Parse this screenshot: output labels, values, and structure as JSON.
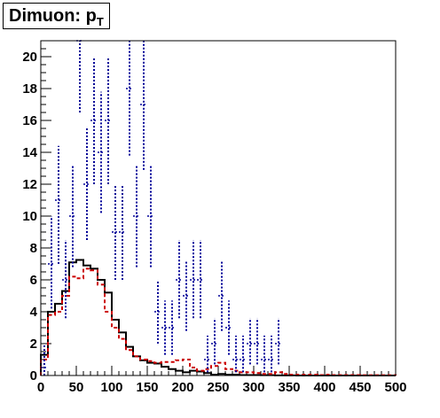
{
  "chart_data": {
    "type": "histogram",
    "title_main": "Dimuon: p",
    "title_sub": "T",
    "xlabel": "",
    "ylabel": "",
    "xlim": [
      0,
      500
    ],
    "ylim": [
      0,
      21
    ],
    "grid": false,
    "legend": "none",
    "bin_width": 10,
    "x_ticks": [
      "0",
      "50",
      "100",
      "150",
      "200",
      "250",
      "300",
      "350",
      "400",
      "450",
      "500"
    ],
    "y_ticks": [
      "0",
      "2",
      "4",
      "6",
      "8",
      "10",
      "12",
      "14",
      "16",
      "18",
      "20"
    ],
    "series": [
      {
        "style": "solid-step",
        "color": "#000000",
        "values": [
          1.3,
          4.0,
          4.5,
          5.3,
          7.1,
          7.25,
          6.9,
          6.7,
          6.0,
          5.2,
          3.5,
          2.7,
          1.8,
          1.2,
          0.95,
          0.8,
          0.75,
          0.55,
          0.4,
          0.3,
          0.2,
          0.3,
          0.25,
          0.15,
          0.05,
          0.1,
          0.05,
          0.05,
          0.03,
          0.03,
          0.03,
          0.02,
          0.02,
          0.01,
          0.01,
          0.01,
          0.0,
          0.0,
          0.0,
          0.0,
          0.0,
          0.0,
          0.0,
          0.0,
          0.0,
          0.0,
          0.0,
          0.0,
          0.0,
          0.0
        ]
      },
      {
        "style": "dashed-step",
        "color": "#cc0000",
        "values": [
          1.0,
          3.8,
          4.0,
          5.0,
          6.2,
          6.1,
          6.7,
          6.6,
          5.7,
          4.0,
          3.0,
          2.3,
          1.6,
          1.2,
          1.0,
          0.9,
          0.8,
          0.85,
          0.85,
          0.95,
          1.0,
          0.5,
          0.3,
          0.4,
          0.6,
          0.8,
          0.4,
          0.3,
          0.2,
          0.2,
          0.15,
          0.1,
          0.1,
          0.2,
          0.1,
          0.05,
          0.05,
          0.05,
          0.05,
          0.03,
          0.05,
          0.03,
          0.03,
          0.03,
          0.03,
          0.02,
          0.02,
          0.02,
          0.02,
          0.02
        ]
      },
      {
        "style": "dotted-errorbars",
        "color": "#000099",
        "points": [
          {
            "x": 5,
            "y": 0.5,
            "lo": 0.0,
            "hi": 2.0
          },
          {
            "x": 15,
            "y": 7.0,
            "lo": 4.2,
            "hi": 10.0
          },
          {
            "x": 25,
            "y": 11.0,
            "lo": 7.0,
            "hi": 14.4
          },
          {
            "x": 35,
            "y": 6.0,
            "lo": 3.6,
            "hi": 8.5
          },
          {
            "x": 45,
            "y": 10.0,
            "lo": 6.8,
            "hi": 13.2
          },
          {
            "x": 55,
            "y": 21.0,
            "lo": 16.5,
            "hi": 25.5
          },
          {
            "x": 65,
            "y": 12.0,
            "lo": 8.5,
            "hi": 15.5
          },
          {
            "x": 75,
            "y": 16.0,
            "lo": 12.0,
            "hi": 20.0
          },
          {
            "x": 85,
            "y": 14.0,
            "lo": 10.2,
            "hi": 17.8
          },
          {
            "x": 95,
            "y": 16.0,
            "lo": 12.0,
            "hi": 20.0
          },
          {
            "x": 105,
            "y": 9.0,
            "lo": 6.0,
            "hi": 12.0
          },
          {
            "x": 115,
            "y": 9.0,
            "lo": 6.0,
            "hi": 12.0
          },
          {
            "x": 125,
            "y": 18.0,
            "lo": 13.8,
            "hi": 22.2
          },
          {
            "x": 135,
            "y": 10.0,
            "lo": 6.8,
            "hi": 13.2
          },
          {
            "x": 145,
            "y": 17.0,
            "lo": 12.9,
            "hi": 21.1
          },
          {
            "x": 155,
            "y": 10.0,
            "lo": 6.8,
            "hi": 13.2
          },
          {
            "x": 165,
            "y": 4.0,
            "lo": 2.0,
            "hi": 6.0
          },
          {
            "x": 175,
            "y": 3.0,
            "lo": 1.3,
            "hi": 4.7
          },
          {
            "x": 185,
            "y": 3.0,
            "lo": 1.3,
            "hi": 4.7
          },
          {
            "x": 195,
            "y": 6.0,
            "lo": 3.6,
            "hi": 8.5
          },
          {
            "x": 205,
            "y": 5.0,
            "lo": 2.8,
            "hi": 7.2
          },
          {
            "x": 215,
            "y": 6.0,
            "lo": 3.6,
            "hi": 8.5
          },
          {
            "x": 225,
            "y": 6.0,
            "lo": 3.6,
            "hi": 8.5
          },
          {
            "x": 235,
            "y": 1.0,
            "lo": 0.2,
            "hi": 2.5
          },
          {
            "x": 245,
            "y": 2.0,
            "lo": 0.7,
            "hi": 3.6
          },
          {
            "x": 255,
            "y": 5.0,
            "lo": 2.8,
            "hi": 7.2
          },
          {
            "x": 265,
            "y": 3.0,
            "lo": 1.3,
            "hi": 4.7
          },
          {
            "x": 275,
            "y": 1.0,
            "lo": 0.2,
            "hi": 2.5
          },
          {
            "x": 285,
            "y": 1.0,
            "lo": 0.2,
            "hi": 2.5
          },
          {
            "x": 295,
            "y": 2.0,
            "lo": 0.7,
            "hi": 3.6
          },
          {
            "x": 305,
            "y": 2.0,
            "lo": 0.7,
            "hi": 3.6
          },
          {
            "x": 315,
            "y": 1.0,
            "lo": 0.2,
            "hi": 2.5
          },
          {
            "x": 325,
            "y": 1.0,
            "lo": 0.2,
            "hi": 2.5
          },
          {
            "x": 335,
            "y": 2.0,
            "lo": 0.7,
            "hi": 3.6
          }
        ]
      }
    ]
  }
}
